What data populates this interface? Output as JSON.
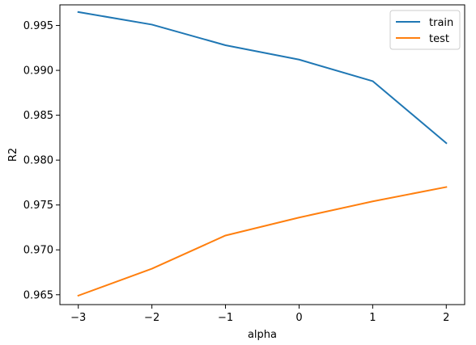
{
  "chart_data": {
    "type": "line",
    "title": "",
    "xlabel": "alpha",
    "ylabel": "R2",
    "x": [
      -3,
      -2,
      -1,
      0,
      1,
      2
    ],
    "xticks": [
      "−3",
      "−2",
      "−1",
      "0",
      "1",
      "2"
    ],
    "yticks": [
      "0.965",
      "0.970",
      "0.975",
      "0.980",
      "0.985",
      "0.990",
      "0.995"
    ],
    "ytick_values": [
      0.965,
      0.97,
      0.975,
      0.98,
      0.985,
      0.99,
      0.995
    ],
    "xlim": [
      -3.25,
      2.25
    ],
    "ylim": [
      0.9639,
      0.9973
    ],
    "grid": false,
    "legend_position": "top-right",
    "series": [
      {
        "name": "train",
        "color": "#1f77b4",
        "values": [
          0.9965,
          0.9951,
          0.9928,
          0.9912,
          0.9888,
          0.9819
        ]
      },
      {
        "name": "test",
        "color": "#ff7f0e",
        "values": [
          0.9649,
          0.9679,
          0.9716,
          0.9736,
          0.9754,
          0.977
        ]
      }
    ]
  }
}
